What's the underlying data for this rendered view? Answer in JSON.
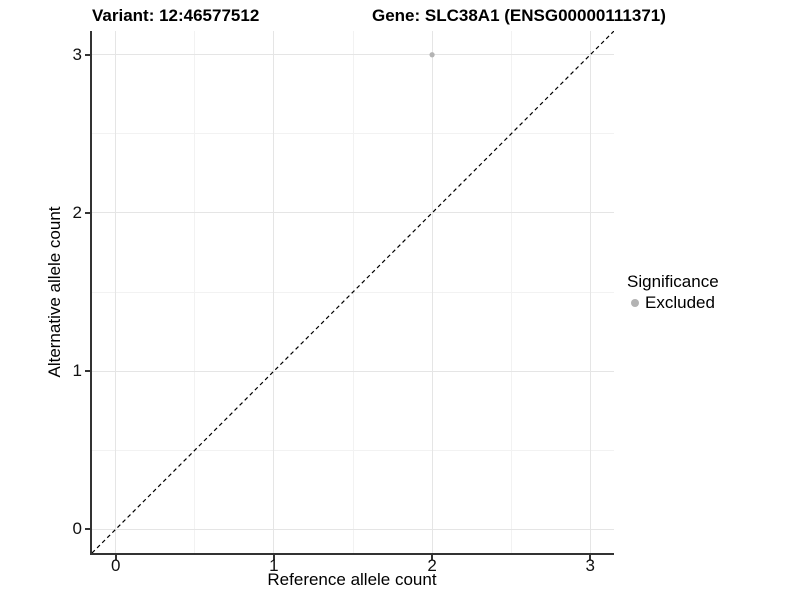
{
  "titles": {
    "left": "Variant: 12:46577512",
    "right": "Gene: SLC38A1 (ENSG00000111371)"
  },
  "legend": {
    "title": "Significance",
    "items": [
      {
        "label": "Excluded",
        "color": "#b3b3b3"
      }
    ]
  },
  "chart_data": {
    "type": "scatter",
    "title": "Variant: 12:46577512 — Gene: SLC38A1 (ENSG00000111371)",
    "xlabel": "Reference allele count",
    "ylabel": "Alternative allele count",
    "xlim": [
      -0.15,
      3.15
    ],
    "ylim": [
      -0.15,
      3.15
    ],
    "x_ticks": [
      0,
      1,
      2,
      3
    ],
    "y_ticks": [
      0,
      1,
      2,
      3
    ],
    "grid": {
      "major": true,
      "minor": true
    },
    "legend_position": "right",
    "series": [
      {
        "name": "Excluded",
        "color": "#b3b3b3",
        "marker": "circle",
        "marker_radius": 2.6,
        "points": [
          {
            "x": 2,
            "y": 3
          }
        ]
      }
    ],
    "reference_line": {
      "label": "identity",
      "slope": 1,
      "intercept": 0,
      "style": "dashed",
      "color": "#000000"
    }
  },
  "colors": {
    "grid_major": "#e5e5e5",
    "grid_minor": "#f2f2f2",
    "axis_line": "#333333",
    "background": "#ffffff"
  }
}
